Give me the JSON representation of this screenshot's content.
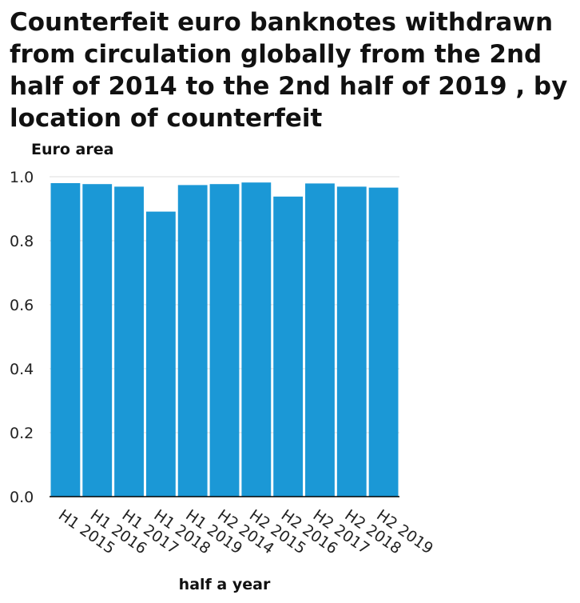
{
  "chart_data": {
    "type": "bar",
    "title": "Counterfeit euro banknotes withdrawn from circulation globally from the 2nd half of 2014 to the 2nd half of 2019 , by location of counterfeit",
    "xlabel": "half a year",
    "ylabel": "Euro area",
    "categories": [
      "H1 2015",
      "H1 2016",
      "H1 2017",
      "H1 2018",
      "H1 2019",
      "H2 2014",
      "H2 2015",
      "H2 2016",
      "H2 2017",
      "H2 2018",
      "H2 2019"
    ],
    "values": [
      0.98,
      0.977,
      0.969,
      0.891,
      0.974,
      0.977,
      0.982,
      0.938,
      0.979,
      0.969,
      0.966
    ],
    "ylim": [
      0,
      1.0
    ],
    "yticks": [
      "0.0",
      "0.2",
      "0.4",
      "0.6",
      "0.8",
      "1.0"
    ],
    "grid": true,
    "bar_color": "#1b98d6"
  }
}
